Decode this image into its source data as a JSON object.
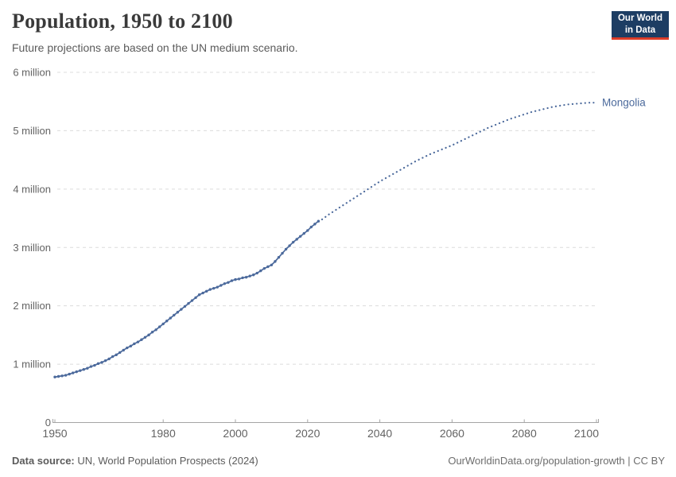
{
  "header": {
    "title": "Population, 1950 to 2100",
    "subtitle": "Future projections are based on the UN medium scenario.",
    "logo": {
      "line1": "Our World",
      "line2": "in Data",
      "bg_color": "#1d3d63",
      "accent_color": "#dc3c28"
    }
  },
  "chart_data": {
    "type": "line",
    "title": "Population, 1950 to 2100",
    "entity": "Mongolia",
    "line_color": "#4c6a9c",
    "xlabel": "",
    "ylabel": "",
    "xlim": [
      1950,
      2100
    ],
    "ylim": [
      0,
      6
    ],
    "grid": "horizontal-dashed",
    "legend_position": "end-of-line-label",
    "x_ticks": [
      1950,
      1980,
      2000,
      2020,
      2040,
      2060,
      2080,
      2100
    ],
    "y_ticks": [
      {
        "value": 0,
        "label": "0"
      },
      {
        "value": 1,
        "label": "1 million"
      },
      {
        "value": 2,
        "label": "2 million"
      },
      {
        "value": 3,
        "label": "3 million"
      },
      {
        "value": 4,
        "label": "4 million"
      },
      {
        "value": 5,
        "label": "5 million"
      },
      {
        "value": 6,
        "label": "6 million"
      }
    ],
    "unit": "million people",
    "series": [
      {
        "name": "Mongolia (historical)",
        "style": "solid-with-dots",
        "years": [
          1950,
          1951,
          1952,
          1953,
          1954,
          1955,
          1956,
          1957,
          1958,
          1959,
          1960,
          1961,
          1962,
          1963,
          1964,
          1965,
          1966,
          1967,
          1968,
          1969,
          1970,
          1971,
          1972,
          1973,
          1974,
          1975,
          1976,
          1977,
          1978,
          1979,
          1980,
          1981,
          1982,
          1983,
          1984,
          1985,
          1986,
          1987,
          1988,
          1989,
          1990,
          1991,
          1992,
          1993,
          1994,
          1995,
          1996,
          1997,
          1998,
          1999,
          2000,
          2001,
          2002,
          2003,
          2004,
          2005,
          2006,
          2007,
          2008,
          2009,
          2010,
          2011,
          2012,
          2013,
          2014,
          2015,
          2016,
          2017,
          2018,
          2019,
          2020,
          2021,
          2022,
          2023
        ],
        "values": [
          0.78,
          0.79,
          0.8,
          0.81,
          0.83,
          0.85,
          0.87,
          0.89,
          0.91,
          0.93,
          0.96,
          0.98,
          1.01,
          1.03,
          1.06,
          1.09,
          1.13,
          1.16,
          1.2,
          1.24,
          1.28,
          1.31,
          1.35,
          1.38,
          1.42,
          1.46,
          1.5,
          1.55,
          1.59,
          1.64,
          1.69,
          1.74,
          1.79,
          1.84,
          1.89,
          1.94,
          1.99,
          2.04,
          2.09,
          2.14,
          2.19,
          2.22,
          2.25,
          2.28,
          2.3,
          2.32,
          2.35,
          2.38,
          2.4,
          2.43,
          2.45,
          2.46,
          2.48,
          2.49,
          2.51,
          2.53,
          2.56,
          2.6,
          2.64,
          2.67,
          2.7,
          2.76,
          2.83,
          2.9,
          2.97,
          3.03,
          3.09,
          3.14,
          3.19,
          3.24,
          3.29,
          3.35,
          3.4,
          3.45
        ]
      },
      {
        "name": "Mongolia (UN medium projection)",
        "style": "dotted",
        "years": [
          2024,
          2026,
          2028,
          2030,
          2032,
          2034,
          2036,
          2038,
          2040,
          2042,
          2044,
          2046,
          2048,
          2050,
          2052,
          2054,
          2056,
          2058,
          2060,
          2062,
          2064,
          2066,
          2068,
          2070,
          2072,
          2074,
          2076,
          2078,
          2080,
          2082,
          2084,
          2086,
          2088,
          2090,
          2092,
          2094,
          2096,
          2098,
          2100
        ],
        "values": [
          3.48,
          3.57,
          3.65,
          3.73,
          3.81,
          3.89,
          3.97,
          4.05,
          4.13,
          4.2,
          4.27,
          4.34,
          4.41,
          4.48,
          4.54,
          4.6,
          4.65,
          4.7,
          4.75,
          4.81,
          4.87,
          4.93,
          4.99,
          5.05,
          5.1,
          5.15,
          5.2,
          5.24,
          5.28,
          5.32,
          5.35,
          5.38,
          5.41,
          5.43,
          5.45,
          5.46,
          5.47,
          5.48,
          5.48
        ]
      }
    ]
  },
  "footer": {
    "source_label": "Data source:",
    "source_text": " UN, World Population Prospects (2024)",
    "credit": "OurWorldinData.org/population-growth | CC BY"
  }
}
